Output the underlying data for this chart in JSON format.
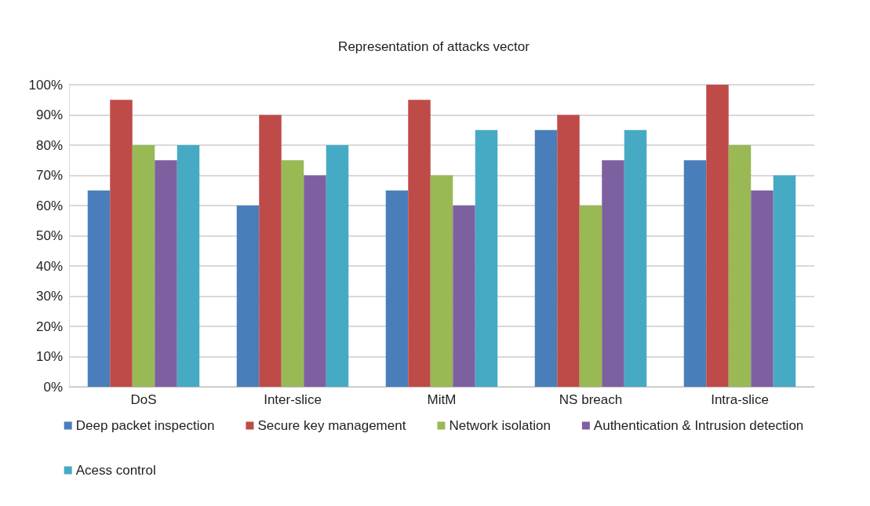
{
  "chart_data": {
    "type": "bar",
    "title": "Representation of attacks vector",
    "categories": [
      "DoS",
      "Inter-slice",
      "MitM",
      "NS breach",
      "Intra-slice"
    ],
    "series": [
      {
        "name": "Deep packet inspection",
        "color": "#4a7ebb",
        "values": [
          65,
          60,
          65,
          85,
          75
        ]
      },
      {
        "name": "Secure key management",
        "color": "#be4b48",
        "values": [
          95,
          90,
          95,
          90,
          100
        ]
      },
      {
        "name": "Network isolation",
        "color": "#98b954",
        "values": [
          80,
          75,
          70,
          60,
          80
        ]
      },
      {
        "name": "Authentication & Intrusion detection",
        "color": "#7d60a0",
        "values": [
          75,
          70,
          60,
          75,
          65
        ]
      },
      {
        "name": "Acess control",
        "color": "#46aac5",
        "values": [
          80,
          80,
          85,
          85,
          70
        ]
      }
    ],
    "ylim": [
      0,
      100
    ],
    "yticks": [
      {
        "value": 0,
        "label": "0%"
      },
      {
        "value": 10,
        "label": "10%"
      },
      {
        "value": 20,
        "label": "20%"
      },
      {
        "value": 30,
        "label": "30%"
      },
      {
        "value": 40,
        "label": "40%"
      },
      {
        "value": 50,
        "label": "50%"
      },
      {
        "value": 60,
        "label": "60%"
      },
      {
        "value": 70,
        "label": "70%"
      },
      {
        "value": 80,
        "label": "80%"
      },
      {
        "value": 90,
        "label": "90%"
      },
      {
        "value": 100,
        "label": "100%"
      }
    ],
    "grid": "y",
    "legend": "bottom"
  }
}
